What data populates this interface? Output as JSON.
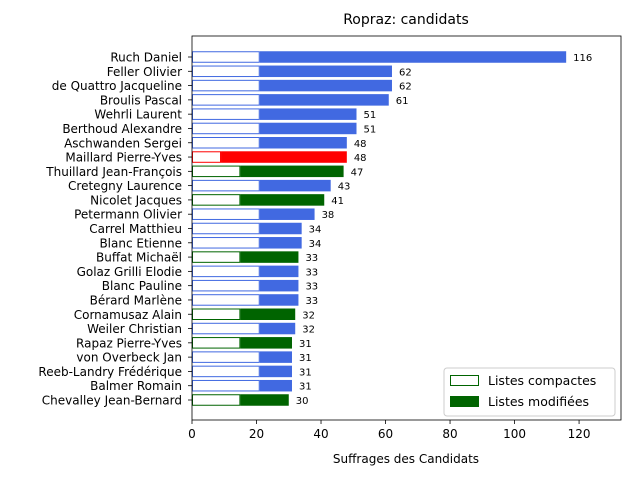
{
  "chart_data": {
    "type": "bar",
    "orientation": "horizontal",
    "title": "Ropraz: candidats",
    "xlabel": "Suffrages des Candidats",
    "ylabel": "",
    "xlim": [
      0,
      133
    ],
    "xticks": [
      0,
      20,
      40,
      60,
      80,
      100,
      120
    ],
    "grid": false,
    "legend_position": "lower-right",
    "categories": [
      "Ruch Daniel",
      "Feller Olivier",
      "de Quattro Jacqueline",
      "Broulis Pascal",
      "Wehrli Laurent",
      "Berthoud Alexandre",
      "Aschwanden Sergei",
      "Maillard Pierre-Yves",
      "Thuillard Jean-François",
      "Cretegny Laurence",
      "Nicolet Jacques",
      "Petermann Olivier",
      "Carrel Matthieu",
      "Blanc Etienne",
      "Buffat Michaël",
      "Golaz Grilli Elodie",
      "Blanc Pauline",
      "Bérard Marlène",
      "Cornamusaz Alain",
      "Weiler Christian",
      "Rapaz Pierre-Yves",
      "von Overbeck Jan",
      "Reeb-Landry Frédérique",
      "Balmer Romain",
      "Chevalley Jean-Bernard"
    ],
    "totals": [
      116,
      62,
      62,
      61,
      51,
      51,
      48,
      48,
      47,
      43,
      41,
      38,
      34,
      34,
      33,
      33,
      33,
      33,
      32,
      32,
      31,
      31,
      31,
      31,
      30
    ],
    "compact": [
      21,
      21,
      21,
      21,
      21,
      21,
      21,
      9,
      15,
      21,
      15,
      21,
      21,
      21,
      15,
      21,
      21,
      21,
      15,
      21,
      15,
      21,
      21,
      21,
      15
    ],
    "bar_colors": [
      "#4169e1",
      "#4169e1",
      "#4169e1",
      "#4169e1",
      "#4169e1",
      "#4169e1",
      "#4169e1",
      "#ff0000",
      "#006400",
      "#4169e1",
      "#006400",
      "#4169e1",
      "#4169e1",
      "#4169e1",
      "#006400",
      "#4169e1",
      "#4169e1",
      "#4169e1",
      "#006400",
      "#4169e1",
      "#006400",
      "#4169e1",
      "#4169e1",
      "#4169e1",
      "#006400"
    ],
    "series": [
      {
        "name": "Listes compactes",
        "style": "outline",
        "color": "#006400"
      },
      {
        "name": "Listes modifiées",
        "style": "filled",
        "color": "#006400"
      }
    ]
  }
}
